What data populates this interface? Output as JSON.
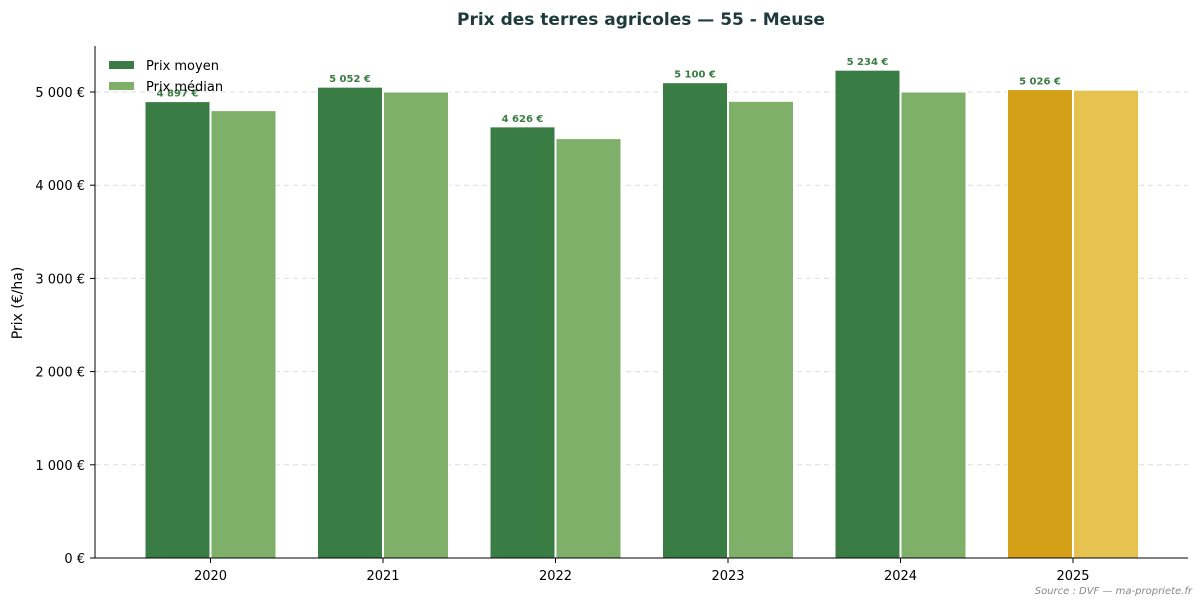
{
  "chart_data": {
    "type": "bar",
    "title": "Prix des terres agricoles — 55 - Meuse",
    "ylabel": "Prix (€/ha)",
    "xlabel": "",
    "categories": [
      "2020",
      "2021",
      "2022",
      "2023",
      "2024",
      "2025"
    ],
    "series": [
      {
        "name": "Prix moyen",
        "values": [
          4897,
          5052,
          4626,
          5100,
          5234,
          5026
        ],
        "data_labels": [
          "4 897 €",
          "5 052 €",
          "4 626 €",
          "5 100 €",
          "5 234 €",
          "5 026 €"
        ],
        "color": "#3a7d44",
        "highlight_color": "#d4a017"
      },
      {
        "name": "Prix médian",
        "values": [
          4800,
          5000,
          4500,
          4900,
          5000,
          5020
        ],
        "color": "#7fb069",
        "highlight_color": "#e6c250"
      }
    ],
    "highlight_category": "2025",
    "ylim": [
      0,
      5500
    ],
    "yticks": [
      0,
      1000,
      2000,
      3000,
      4000,
      5000
    ],
    "ytick_labels": [
      "0 €",
      "1 000 €",
      "2 000 €",
      "3 000 €",
      "4 000 €",
      "5 000 €"
    ],
    "grid": "y-dashed",
    "legend_position": "top-left",
    "source": "Source : DVF — ma-propriete.fr"
  }
}
